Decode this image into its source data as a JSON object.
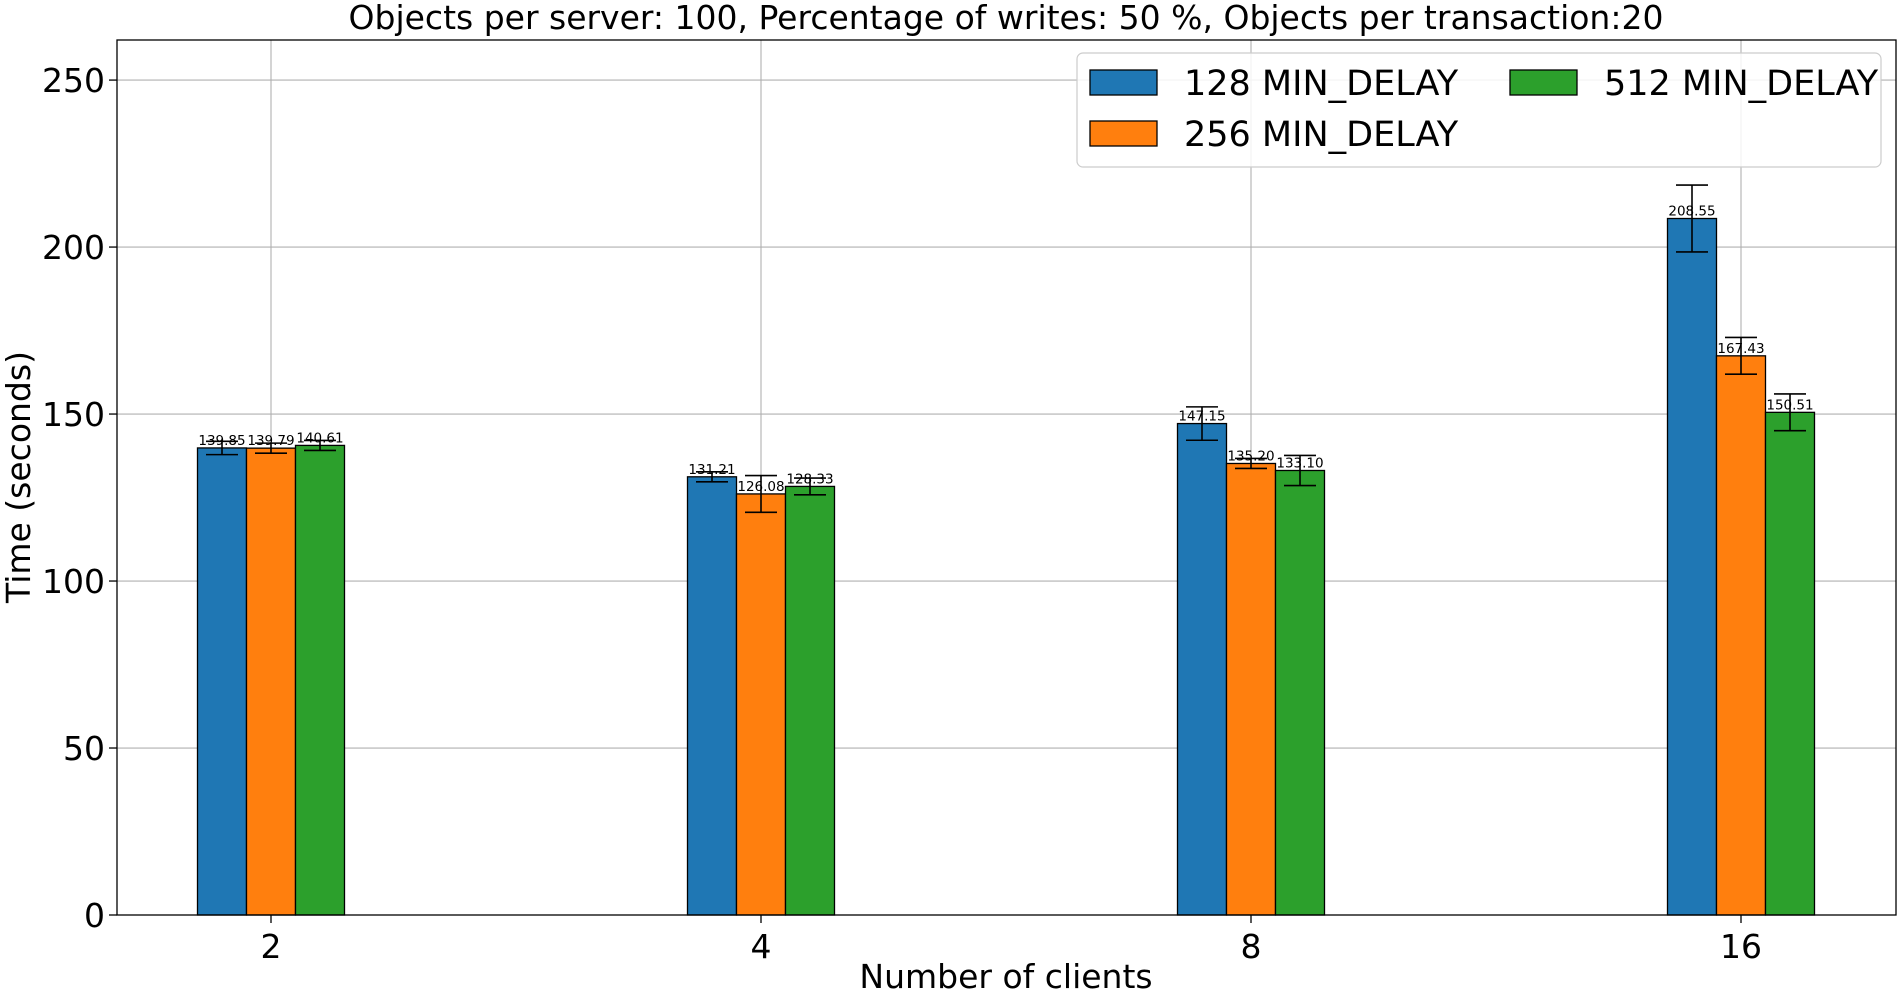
{
  "chart_data": {
    "type": "bar",
    "title": "Objects per server: 100, Percentage of writes: 50 %, Objects per transaction:20",
    "xlabel": "Number of clients",
    "ylabel": "Time (seconds)",
    "categories": [
      "2",
      "4",
      "8",
      "16"
    ],
    "ylim": [
      0,
      262
    ],
    "yticks": [
      0,
      50,
      100,
      150,
      200,
      250
    ],
    "grid": true,
    "legend_position": "top-right",
    "legend_columns": 2,
    "series": [
      {
        "name": "128 MIN_DELAY",
        "color": "#1f77b4",
        "values": [
          139.85,
          131.21,
          147.15,
          208.55
        ],
        "labels": [
          "139.85",
          "131.21",
          "147.15",
          "208.55"
        ],
        "error": [
          2,
          1.5,
          5,
          10
        ]
      },
      {
        "name": "256 MIN_DELAY",
        "color": "#ff7f0e",
        "values": [
          139.79,
          126.08,
          135.2,
          167.43
        ],
        "labels": [
          "139.79",
          "126.08",
          "135.20",
          "167.43"
        ],
        "error": [
          1.5,
          5.5,
          1.5,
          5.5
        ]
      },
      {
        "name": "512 MIN_DELAY",
        "color": "#2ca02c",
        "values": [
          140.61,
          128.33,
          133.1,
          150.51
        ],
        "labels": [
          "140.61",
          "128.33",
          "133.10",
          "150.51"
        ],
        "error": [
          1.5,
          2.5,
          4.5,
          5.5
        ]
      }
    ]
  }
}
